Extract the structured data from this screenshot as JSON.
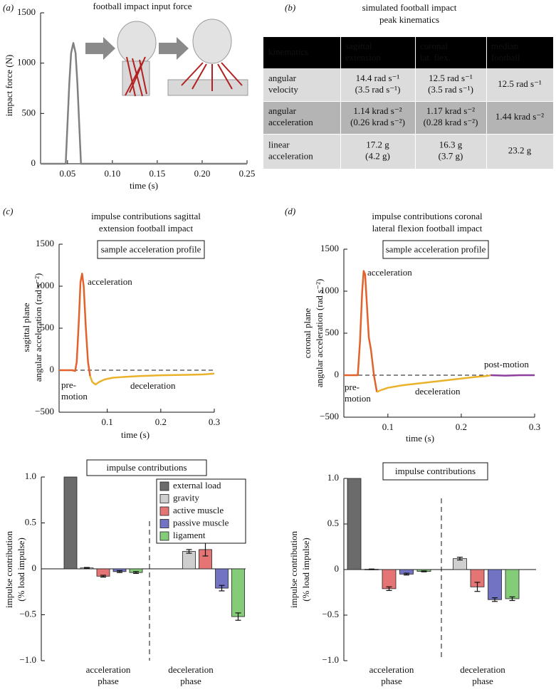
{
  "panel_labels": [
    "(a)",
    "(b)",
    "(c)",
    "(d)"
  ],
  "table": {
    "title": [
      "simulated football impact",
      "peak kinematics"
    ],
    "header": [
      [
        "kinematics"
      ],
      [
        "sagittal",
        "extension"
      ],
      [
        "coronal",
        "lat. flex."
      ],
      [
        "median",
        "football"
      ]
    ],
    "rows": [
      [
        [
          "angular",
          "velocity"
        ],
        [
          "14.4 rad s⁻¹",
          "(3.5 rad s⁻¹)"
        ],
        [
          "12.5 rad s⁻¹",
          "(3.5 rad s⁻¹)"
        ],
        [
          "12.5 rad s⁻¹"
        ]
      ],
      [
        [
          "angular",
          "acceleration"
        ],
        [
          "1.14 krad s⁻²",
          "(0.26 krad s⁻²)"
        ],
        [
          "1.17 krad s⁻²",
          "(0.28 krad s⁻²)"
        ],
        [
          "1.44 krad s⁻²"
        ]
      ],
      [
        [
          "linear",
          "acceleration"
        ],
        [
          "17.2 g",
          "(4.2 g)"
        ],
        [
          "16.3 g",
          "(3.7 g)"
        ],
        [
          "23.2 g"
        ]
      ]
    ]
  },
  "chart_data": [
    {
      "type": "line",
      "title": "football impact input force",
      "xlabel": "time (s)",
      "ylabel": [
        "impact force (N)"
      ],
      "xlim": [
        0.02,
        0.25
      ],
      "xticks": [
        0.05,
        {
          "value": 0.1,
          "label": "0.10"
        },
        0.15,
        {
          "value": 0.2,
          "label": "0.20"
        },
        0.25
      ],
      "ylim": [
        0,
        1500
      ],
      "yticks": [
        0,
        500,
        1000,
        1500
      ],
      "series": [
        {
          "color": "#808080",
          "x": [
            0.02,
            0.048,
            0.05,
            0.052,
            0.054,
            0.0565,
            0.059,
            0.061,
            0.063,
            0.065,
            0.25
          ],
          "values": [
            0,
            0,
            400,
            800,
            1100,
            1200,
            1100,
            800,
            400,
            0,
            0
          ]
        }
      ]
    },
    {
      "type": "line",
      "title": [
        "impulse contributions sagittal",
        "extension football impact"
      ],
      "box_title": "sample acceleration profile",
      "xlabel": "time (s)",
      "ylabel": [
        "sagittal plane",
        "angular acceleration (rad s⁻²)"
      ],
      "xlim": [
        0.01,
        0.3
      ],
      "xticks": [
        0.1,
        0.2,
        0.3
      ],
      "ylim": [
        -500,
        1500
      ],
      "yticks": [
        {
          "value": -500,
          "label": "−500"
        },
        0,
        500,
        1000,
        1500
      ],
      "reference_line": 0,
      "series": [
        {
          "color": "#e2622c",
          "x": [
            0.01,
            0.035,
            0.04,
            0.043,
            0.047,
            0.05,
            0.053,
            0.056,
            0.06,
            0.064,
            0.068
          ],
          "values": [
            0,
            0,
            -10,
            100,
            600,
            1050,
            1150,
            1000,
            500,
            100,
            -70
          ]
        },
        {
          "color": "#eab22a",
          "x": [
            0.068,
            0.072,
            0.078,
            0.085,
            0.095,
            0.11,
            0.13,
            0.16,
            0.2,
            0.25,
            0.28,
            0.3
          ],
          "values": [
            -70,
            -140,
            -170,
            -140,
            -110,
            -90,
            -80,
            -70,
            -60,
            -55,
            -50,
            -40
          ]
        }
      ],
      "annotations": [
        {
          "lines": [
            "acceleration"
          ],
          "color": "#e2622c"
        },
        {
          "lines": [
            "pre-",
            "motion"
          ],
          "color": "#2f86c0"
        },
        {
          "lines": [
            "deceleration"
          ],
          "color": "#e0a91e"
        }
      ]
    },
    {
      "type": "line",
      "title": [
        "impulse contributions coronal",
        "lateral flexion football impact"
      ],
      "box_title": "sample acceleration profile",
      "xlabel": "time (s)",
      "ylabel": [
        "coronal plane",
        "angular acceleration (rad s⁻²)"
      ],
      "xlim": [
        0.04,
        0.3
      ],
      "xticks": [
        0.1,
        0.2,
        0.3
      ],
      "ylim": [
        -500,
        1500
      ],
      "yticks": [
        {
          "value": -500,
          "label": "−500"
        },
        0,
        500,
        1000,
        1500
      ],
      "reference_line": 0,
      "series": [
        {
          "color": "#e2622c",
          "x": [
            0.04,
            0.055,
            0.059,
            0.062,
            0.065,
            0.067,
            0.069,
            0.071,
            0.074,
            0.077,
            0.081,
            0.085
          ],
          "values": [
            0,
            0,
            0,
            400,
            1000,
            1240,
            1200,
            900,
            450,
            300,
            0,
            -200
          ]
        },
        {
          "color": "#eab22a",
          "x": [
            0.085,
            0.09,
            0.1,
            0.12,
            0.15,
            0.18,
            0.2,
            0.22,
            0.235,
            0.24
          ],
          "values": [
            -200,
            -180,
            -150,
            -120,
            -90,
            -60,
            -40,
            -20,
            -10,
            0
          ]
        },
        {
          "color": "#8e3fa0",
          "x": [
            0.24,
            0.26,
            0.28,
            0.3
          ],
          "values": [
            0,
            -5,
            0,
            0
          ]
        }
      ],
      "annotations": [
        {
          "lines": [
            "acceleration"
          ],
          "color": "#e2622c"
        },
        {
          "lines": [
            "pre-",
            "motion"
          ],
          "color": "#2f86c0"
        },
        {
          "lines": [
            "deceleration"
          ],
          "color": "#e0a91e"
        },
        {
          "lines": [
            "post-motion"
          ],
          "color": "#8e3fa0"
        }
      ]
    },
    {
      "type": "bar",
      "box_title": "impulse contributions",
      "ylabel": [
        "impulse contribution",
        "(% load impulse)"
      ],
      "categories": [
        [
          "acceleration",
          "phase"
        ],
        [
          "deceleration",
          "phase"
        ]
      ],
      "category_colors": [
        "#e05a2b",
        "#e8b425"
      ],
      "ylim": [
        -1,
        1
      ],
      "yticks": [
        {
          "value": -1,
          "label": "−1.0"
        },
        {
          "value": -0.5,
          "label": "−0.5"
        },
        0,
        0.5,
        {
          "value": 1,
          "label": "1.0"
        }
      ],
      "legend": "upper right",
      "divider": true,
      "series": [
        {
          "name": "external load",
          "color": "#6b6b6b",
          "values": [
            1.0,
            null
          ],
          "errors": [
            null,
            null
          ]
        },
        {
          "name": "gravity",
          "color": "#cfcfcf",
          "values": [
            0.01,
            0.19
          ],
          "errors": [
            0.005,
            0.02
          ]
        },
        {
          "name": "active muscle",
          "color": "#e57575",
          "values": [
            -0.08,
            0.21
          ],
          "errors": [
            0.01,
            0.07
          ]
        },
        {
          "name": "passive muscle",
          "color": "#7373c4",
          "values": [
            -0.03,
            -0.21
          ],
          "errors": [
            0.01,
            0.03
          ]
        },
        {
          "name": "ligament",
          "color": "#84cc78",
          "values": [
            -0.04,
            -0.52
          ],
          "errors": [
            0.01,
            0.04
          ]
        }
      ]
    },
    {
      "type": "bar",
      "box_title": "impulse contributions",
      "ylabel": [
        "impulse contribution",
        "(% load impulse)"
      ],
      "categories": [
        [
          "acceleration",
          "phase"
        ],
        [
          "deceleration",
          "phase"
        ]
      ],
      "category_colors": [
        "#e05a2b",
        "#e8b425"
      ],
      "ylim": [
        -1,
        1
      ],
      "yticks": [
        {
          "value": -1,
          "label": "−1.0"
        },
        {
          "value": -0.5,
          "label": "−0.5"
        },
        0,
        0.5,
        {
          "value": 1,
          "label": "1.0"
        }
      ],
      "divider": true,
      "series": [
        {
          "color": "#6b6b6b",
          "values": [
            1.0,
            null
          ],
          "errors": [
            null,
            null
          ]
        },
        {
          "color": "#cfcfcf",
          "values": [
            0.003,
            0.12
          ],
          "errors": [
            0.003,
            0.015
          ]
        },
        {
          "color": "#e57575",
          "values": [
            -0.21,
            -0.19
          ],
          "errors": [
            0.02,
            0.05
          ]
        },
        {
          "color": "#7373c4",
          "values": [
            -0.05,
            -0.33
          ],
          "errors": [
            0.01,
            0.02
          ]
        },
        {
          "color": "#84cc78",
          "values": [
            -0.02,
            -0.32
          ],
          "errors": [
            0.005,
            0.02
          ]
        }
      ]
    }
  ]
}
